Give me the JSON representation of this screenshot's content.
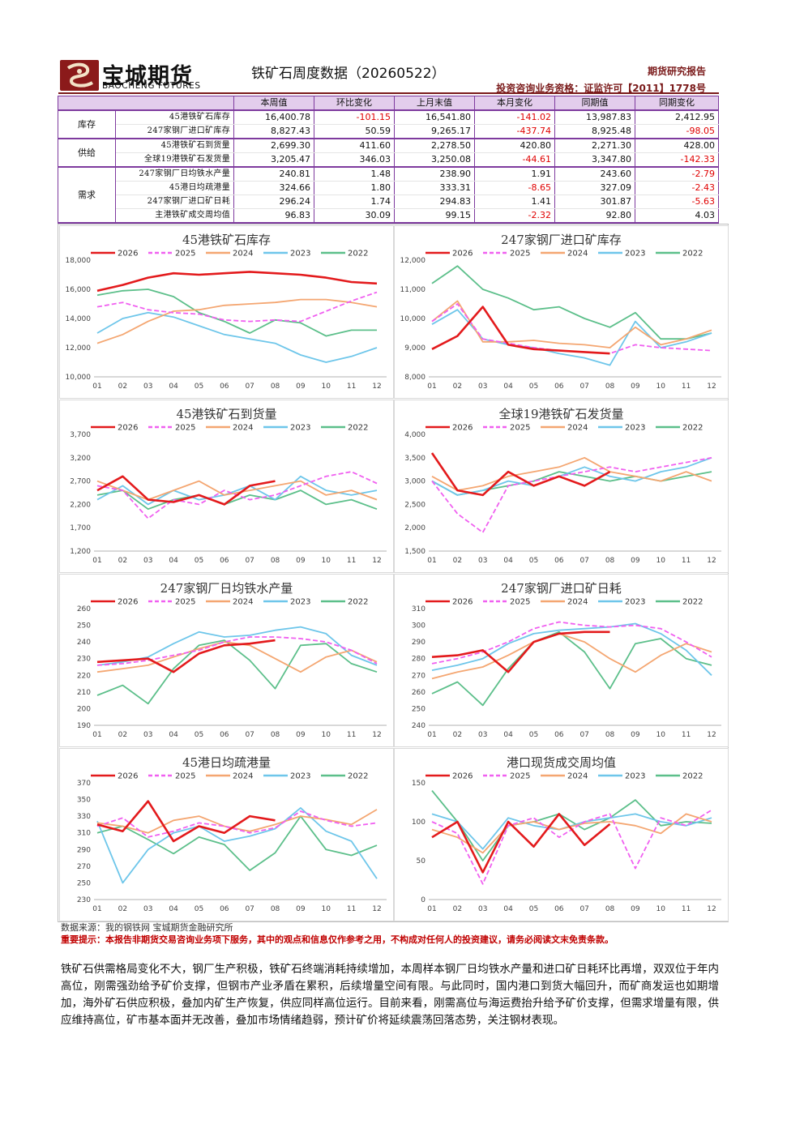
{
  "header": {
    "logo_cn": "宝城期货",
    "logo_en": "BAOCHENG FUTURES",
    "title": "铁矿石周度数据（20260522）",
    "report_type": "期货研究报告",
    "license": "投资咨询业务资格：证监许可【2011】1778号"
  },
  "table": {
    "columns": [
      "",
      "",
      "本周值",
      "环比变化",
      "上月末值",
      "本月变化",
      "同期值",
      "同期变化"
    ],
    "groups": [
      {
        "name": "库存",
        "rows": [
          {
            "label": "45港铁矿石库存",
            "cells": [
              "16,400.78",
              "-101.15",
              "16,541.80",
              "-141.02",
              "13,987.83",
              "2,412.95"
            ]
          },
          {
            "label": "247家钢厂进口矿库存",
            "cells": [
              "8,827.43",
              "50.59",
              "9,265.17",
              "-437.74",
              "8,925.48",
              "-98.05"
            ]
          }
        ]
      },
      {
        "name": "供给",
        "rows": [
          {
            "label": "45港铁矿石到货量",
            "cells": [
              "2,699.30",
              "411.60",
              "2,278.50",
              "420.80",
              "2,271.30",
              "428.00"
            ]
          },
          {
            "label": "全球19港铁矿石发货量",
            "cells": [
              "3,205.47",
              "346.03",
              "3,250.08",
              "-44.61",
              "3,347.80",
              "-142.33"
            ]
          }
        ]
      },
      {
        "name": "需求",
        "rows": [
          {
            "label": "247家钢厂日均铁水产量",
            "cells": [
              "240.81",
              "1.48",
              "238.90",
              "1.91",
              "243.60",
              "-2.79"
            ]
          },
          {
            "label": "45港日均疏港量",
            "cells": [
              "324.66",
              "1.80",
              "333.31",
              "-8.65",
              "327.09",
              "-2.43"
            ]
          },
          {
            "label": "247家钢厂进口矿日耗",
            "cells": [
              "296.24",
              "1.74",
              "294.83",
              "1.41",
              "301.87",
              "-5.63"
            ]
          },
          {
            "label": "主港铁矿成交周均值",
            "cells": [
              "96.83",
              "30.09",
              "99.15",
              "-2.32",
              "92.80",
              "4.03"
            ]
          }
        ]
      }
    ]
  },
  "colors": {
    "2026": "#e31a1c",
    "2025": "#f060f0",
    "2024": "#f4a671",
    "2023": "#6ec6ea",
    "2022": "#5cbf8a",
    "accent": "#7a1a1a",
    "table_border": "#7e3a9e",
    "negative": "#e00000"
  },
  "chart_data": [
    {
      "type": "line",
      "title": "45港铁矿石库存",
      "x_ticks": [
        "01",
        "02",
        "03",
        "04",
        "05",
        "06",
        "07",
        "08",
        "09",
        "10",
        "11",
        "12"
      ],
      "y_ticks": [
        "10,000",
        "12,000",
        "14,000",
        "16,000",
        "18,000"
      ],
      "ylim": [
        10000,
        18000
      ],
      "legend_position": "top",
      "series": [
        {
          "name": "2026",
          "values": [
            15900,
            16300,
            16800,
            17100,
            17000,
            17100,
            17200,
            17100,
            17000,
            16800,
            16500,
            16400
          ]
        },
        {
          "name": "2025",
          "values": [
            14800,
            15100,
            14600,
            14400,
            14300,
            13900,
            13800,
            13900,
            13800,
            14500,
            15200,
            15800
          ]
        },
        {
          "name": "2024",
          "values": [
            12300,
            12900,
            13800,
            14500,
            14600,
            14900,
            15000,
            15100,
            15300,
            15300,
            15100,
            14800
          ]
        },
        {
          "name": "2023",
          "values": [
            13000,
            14000,
            14400,
            14100,
            13500,
            12900,
            12600,
            12300,
            11500,
            11000,
            11400,
            12000
          ]
        },
        {
          "name": "2022",
          "values": [
            15600,
            15900,
            16000,
            15500,
            14400,
            13800,
            13000,
            13900,
            13700,
            12800,
            13200,
            13200
          ]
        }
      ]
    },
    {
      "type": "line",
      "title": "247家钢厂进口矿库存",
      "x_ticks": [
        "01",
        "02",
        "03",
        "04",
        "05",
        "06",
        "07",
        "08",
        "09",
        "10",
        "11",
        "12"
      ],
      "y_ticks": [
        "8,000",
        "9,000",
        "10,000",
        "11,000",
        "12,000"
      ],
      "ylim": [
        8000,
        12000
      ],
      "legend_position": "top",
      "series": [
        {
          "name": "2026",
          "values": [
            8950,
            9400,
            10400,
            9100,
            8950,
            8900,
            8850,
            8800
          ]
        },
        {
          "name": "2025",
          "values": [
            9900,
            10500,
            9300,
            9150,
            9000,
            8900,
            8850,
            8800,
            9100,
            9000,
            8950,
            8900
          ]
        },
        {
          "name": "2024",
          "values": [
            9900,
            10600,
            9200,
            9200,
            9250,
            9150,
            9100,
            9000,
            9700,
            9100,
            9300,
            9600
          ]
        },
        {
          "name": "2023",
          "values": [
            9800,
            10300,
            9300,
            9100,
            9000,
            8800,
            8650,
            8400,
            9900,
            9000,
            9200,
            9500
          ]
        },
        {
          "name": "2022",
          "values": [
            11200,
            11800,
            11000,
            10700,
            10300,
            10400,
            10000,
            9700,
            10200,
            9300,
            9300,
            9500
          ]
        }
      ]
    },
    {
      "type": "line",
      "title": "45港铁矿石到货量",
      "x_ticks": [
        "01",
        "02",
        "03",
        "04",
        "05",
        "06",
        "07",
        "08",
        "09",
        "10",
        "11",
        "12"
      ],
      "y_ticks": [
        "1,200",
        "1,700",
        "2,200",
        "2,700",
        "3,200",
        "3,700"
      ],
      "ylim": [
        1200,
        3700
      ],
      "legend_position": "top",
      "series": [
        {
          "name": "2026",
          "values": [
            2500,
            2800,
            2300,
            2250,
            2400,
            2200,
            2600,
            2700
          ]
        },
        {
          "name": "2025",
          "values": [
            2600,
            2500,
            1900,
            2300,
            2200,
            2500,
            2300,
            2400,
            2600,
            2800,
            2900,
            2650
          ]
        },
        {
          "name": "2024",
          "values": [
            2700,
            2500,
            2300,
            2500,
            2700,
            2400,
            2500,
            2600,
            2700,
            2400,
            2500,
            2300
          ]
        },
        {
          "name": "2023",
          "values": [
            2300,
            2600,
            2200,
            2500,
            2300,
            2400,
            2600,
            2300,
            2800,
            2500,
            2400,
            2500
          ]
        },
        {
          "name": "2022",
          "values": [
            2400,
            2500,
            2100,
            2300,
            2400,
            2200,
            2400,
            2300,
            2500,
            2200,
            2300,
            2100
          ]
        }
      ]
    },
    {
      "type": "line",
      "title": "全球19港铁矿石发货量",
      "x_ticks": [
        "01",
        "02",
        "03",
        "04",
        "05",
        "06",
        "07",
        "08",
        "09",
        "10",
        "11",
        "12"
      ],
      "y_ticks": [
        "1,500",
        "2,000",
        "2,500",
        "3,000",
        "3,500",
        "4,000"
      ],
      "ylim": [
        1500,
        4000
      ],
      "legend_position": "top",
      "series": [
        {
          "name": "2026",
          "values": [
            3600,
            2800,
            2700,
            3200,
            2900,
            3100,
            2900,
            3200
          ]
        },
        {
          "name": "2025",
          "values": [
            3000,
            2300,
            1900,
            2900,
            3000,
            3100,
            3200,
            3300,
            3200,
            3300,
            3400,
            3500
          ]
        },
        {
          "name": "2024",
          "values": [
            3100,
            2800,
            2900,
            3100,
            3200,
            3300,
            3500,
            3200,
            3100,
            3000,
            3200,
            3000
          ]
        },
        {
          "name": "2023",
          "values": [
            3000,
            2700,
            2800,
            3000,
            2900,
            3100,
            3300,
            3100,
            3000,
            3200,
            3300,
            3500
          ]
        },
        {
          "name": "2022",
          "values": [
            3000,
            2700,
            2800,
            2900,
            3000,
            3200,
            3100,
            3000,
            3100,
            3000,
            3100,
            3200
          ]
        }
      ]
    },
    {
      "type": "line",
      "title": "247家钢厂日均铁水产量",
      "x_ticks": [
        "01",
        "02",
        "03",
        "04",
        "05",
        "06",
        "07",
        "08",
        "09",
        "10",
        "11",
        "12"
      ],
      "y_ticks": [
        "190",
        "200",
        "210",
        "220",
        "230",
        "240",
        "250",
        "260"
      ],
      "ylim": [
        190,
        260
      ],
      "legend_position": "top",
      "series": [
        {
          "name": "2026",
          "values": [
            228,
            229,
            230,
            222,
            233,
            238,
            239,
            241
          ]
        },
        {
          "name": "2025",
          "values": [
            226,
            227,
            229,
            232,
            235,
            240,
            243,
            243,
            242,
            240,
            235,
            227
          ]
        },
        {
          "name": "2024",
          "values": [
            222,
            224,
            226,
            231,
            236,
            240,
            238,
            230,
            222,
            231,
            235,
            228
          ]
        },
        {
          "name": "2023",
          "values": [
            226,
            228,
            231,
            239,
            246,
            243,
            244,
            247,
            249,
            245,
            232,
            226
          ]
        },
        {
          "name": "2022",
          "values": [
            208,
            214,
            203,
            224,
            238,
            241,
            229,
            212,
            238,
            239,
            227,
            222
          ]
        }
      ]
    },
    {
      "type": "line",
      "title": "247家钢厂进口矿日耗",
      "x_ticks": [
        "01",
        "02",
        "03",
        "04",
        "05",
        "06",
        "07",
        "08",
        "09",
        "10",
        "11",
        "12"
      ],
      "y_ticks": [
        "240",
        "250",
        "260",
        "270",
        "280",
        "290",
        "300",
        "310"
      ],
      "ylim": [
        240,
        310
      ],
      "legend_position": "top",
      "series": [
        {
          "name": "2026",
          "values": [
            281,
            282,
            285,
            272,
            290,
            295,
            296,
            296
          ]
        },
        {
          "name": "2025",
          "values": [
            277,
            280,
            284,
            290,
            298,
            302,
            300,
            299,
            300,
            298,
            290,
            281
          ]
        },
        {
          "name": "2024",
          "values": [
            268,
            272,
            275,
            282,
            290,
            295,
            290,
            280,
            272,
            282,
            289,
            284
          ]
        },
        {
          "name": "2023",
          "values": [
            273,
            276,
            280,
            289,
            295,
            297,
            298,
            299,
            301,
            295,
            285,
            270
          ]
        },
        {
          "name": "2022",
          "values": [
            259,
            266,
            252,
            274,
            290,
            296,
            284,
            262,
            289,
            292,
            280,
            276
          ]
        }
      ]
    },
    {
      "type": "line",
      "title": "45港日均疏港量",
      "x_ticks": [
        "01",
        "02",
        "03",
        "04",
        "05",
        "06",
        "07",
        "08",
        "09",
        "10",
        "11",
        "12"
      ],
      "y_ticks": [
        "230",
        "250",
        "270",
        "290",
        "310",
        "330",
        "350",
        "370"
      ],
      "ylim": [
        230,
        370
      ],
      "legend_position": "top",
      "series": [
        {
          "name": "2026",
          "values": [
            320,
            312,
            348,
            300,
            318,
            310,
            330,
            325
          ]
        },
        {
          "name": "2025",
          "values": [
            318,
            328,
            305,
            312,
            322,
            318,
            310,
            316,
            336,
            325,
            318,
            322
          ]
        },
        {
          "name": "2024",
          "values": [
            322,
            318,
            310,
            325,
            330,
            318,
            312,
            320,
            330,
            326,
            320,
            338
          ]
        },
        {
          "name": "2023",
          "values": [
            324,
            250,
            290,
            310,
            318,
            300,
            306,
            315,
            340,
            312,
            300,
            255
          ]
        },
        {
          "name": "2022",
          "values": [
            310,
            318,
            302,
            285,
            305,
            296,
            265,
            286,
            330,
            290,
            283,
            295
          ]
        }
      ]
    },
    {
      "type": "line",
      "title": "港口现货成交周均值",
      "x_ticks": [
        "01",
        "02",
        "03",
        "04",
        "05",
        "06",
        "07",
        "08",
        "09",
        "10",
        "11",
        "12"
      ],
      "y_ticks": [
        "0",
        "50",
        "100",
        "150"
      ],
      "ylim": [
        0,
        150
      ],
      "legend_position": "top",
      "series": [
        {
          "name": "2026",
          "values": [
            80,
            100,
            35,
            100,
            68,
            110,
            70,
            97
          ]
        },
        {
          "name": "2025",
          "values": [
            100,
            85,
            20,
            95,
            105,
            80,
            100,
            110,
            40,
            105,
            95,
            115
          ]
        },
        {
          "name": "2024",
          "values": [
            90,
            80,
            60,
            95,
            100,
            90,
            98,
            100,
            95,
            85,
            110,
            100
          ]
        },
        {
          "name": "2023",
          "values": [
            110,
            100,
            65,
            105,
            95,
            90,
            100,
            105,
            110,
            100,
            95,
            105
          ]
        },
        {
          "name": "2022",
          "values": [
            140,
            100,
            50,
            95,
            100,
            110,
            90,
            105,
            128,
            95,
            100,
            98
          ]
        }
      ]
    }
  ],
  "footer": {
    "source": "数据来源：我的钢铁网 宝城期货金融研究所",
    "notice": "重要提示：本报告非期货交易咨询业务项下服务，其中的观点和信息仅作参考之用，不构成对任何人的投资建议，请务必阅读文末免责条款。",
    "body": "铁矿石供需格局变化不大，钢厂生产积极，铁矿石终端消耗持续增加，本周样本钢厂日均铁水产量和进口矿日耗环比再增，双双位于年内高位，刚需强劲给予矿价支撑，但钢市产业矛盾在累积，后续增量空间有限。与此同时，国内港口到货大幅回升，而矿商发运也如期增加，海外矿石供应积极，叠加内矿生产恢复，供应同样高位运行。目前来看，刚需高位与海运费抬升给予矿价支撑，但需求增量有限，供应维持高位，矿市基本面并无改善，叠加市场情绪趋弱，预计矿价将延续震荡回落态势，关注钢材表现。"
  }
}
